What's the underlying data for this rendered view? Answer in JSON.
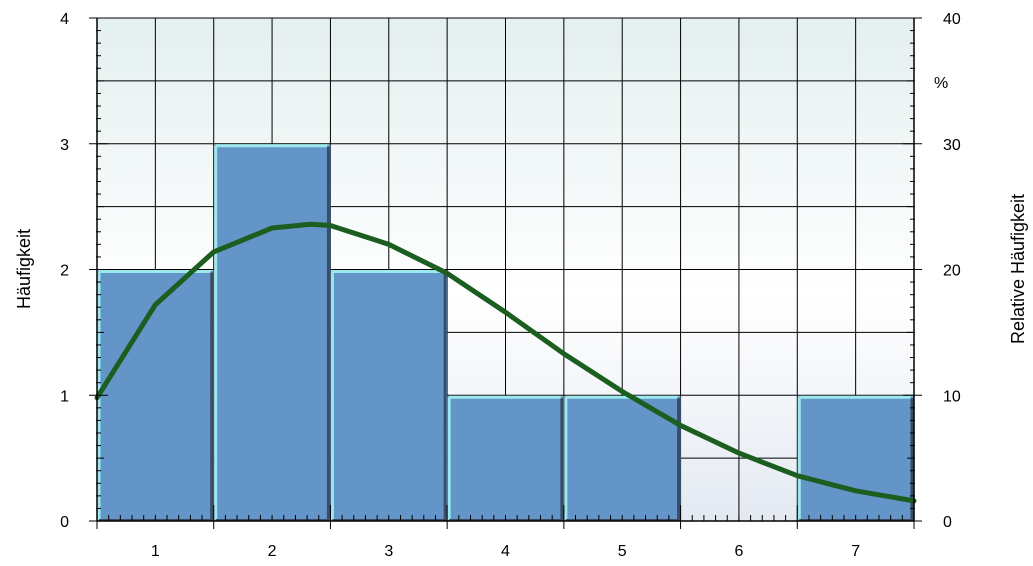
{
  "chart_data": {
    "type": "bar",
    "categories": [
      "1",
      "2",
      "3",
      "4",
      "5",
      "6",
      "7"
    ],
    "values": [
      2,
      3,
      2,
      1,
      1,
      0,
      1
    ],
    "ylabel": "Häufigkeit",
    "y2label": "Relative Häufigkeit",
    "y2unit": "%",
    "ylim": [
      0,
      4
    ],
    "y2lim": [
      0,
      40
    ],
    "yticks": [
      "0",
      "1",
      "2",
      "3",
      "4"
    ],
    "y2ticks": [
      "0",
      "10",
      "20",
      "30",
      "40"
    ],
    "grid": true,
    "curve": {
      "type": "normal-density",
      "x": [
        0.5,
        1.0,
        1.5,
        2.0,
        2.33,
        2.5,
        3.0,
        3.5,
        4.0,
        4.5,
        5.0,
        5.5,
        6.0,
        6.5,
        7.0,
        7.5
      ],
      "y": [
        0.98,
        1.72,
        2.14,
        2.33,
        2.36,
        2.35,
        2.2,
        1.97,
        1.66,
        1.33,
        1.03,
        0.76,
        0.54,
        0.36,
        0.24,
        0.16
      ]
    }
  },
  "colors": {
    "bar_fill": "#6495c8",
    "bar_highlight": "#9be8ee",
    "bar_shadow": "#3c4c66",
    "curve": "#1b5e20",
    "grid": "#000000",
    "background_top": "#e4efef",
    "background_bottom": "#e4e9f2"
  }
}
